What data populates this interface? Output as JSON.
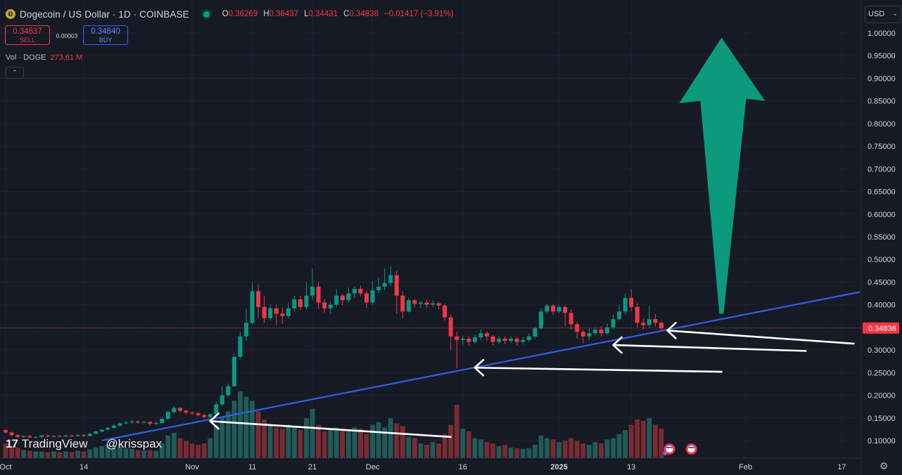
{
  "header": {
    "symbol": "Dogecoin / US Dollar · 1D · COINBASE",
    "coin_glyph": "Ð",
    "ohlc": [
      {
        "key": "O",
        "value": "0.36269"
      },
      {
        "key": "H",
        "value": "0.36437"
      },
      {
        "key": "L",
        "value": "0.34431"
      },
      {
        "key": "C",
        "value": "0.34838"
      }
    ],
    "change": "−0.01417 (−3.91%)"
  },
  "trade": {
    "sell_price": "0.34837",
    "sell_label": "SELL",
    "spread": "0.00003",
    "buy_price": "0.34840",
    "buy_label": "BUY"
  },
  "volume": {
    "label": "Vol · DOGE",
    "value": "273.61 M"
  },
  "currency": "USD",
  "watermark": {
    "logo": "17",
    "brand": "TradingView",
    "user": "@krisspax"
  },
  "colors": {
    "up": "#089981",
    "down": "#f23645",
    "vol_up": "#1f5b57",
    "vol_down": "#7a2a33",
    "trendline": "#2f5fe8",
    "big_arrow": "#0b9a7c",
    "arrows": "#ffffff",
    "background": "#161a25"
  },
  "chart_data": {
    "type": "candlestick",
    "ylim": [
      0.058,
      1.027
    ],
    "y_ticks": [
      "1.00000",
      "0.95000",
      "0.90000",
      "0.85000",
      "0.80000",
      "0.75000",
      "0.70000",
      "0.65000",
      "0.60000",
      "0.55000",
      "0.50000",
      "0.45000",
      "0.40000",
      "0.35000",
      "0.30000",
      "0.25000",
      "0.20000",
      "0.15000",
      "0.10000"
    ],
    "x_ticks": [
      {
        "label": "Oct",
        "day": 0
      },
      {
        "label": "14",
        "day": 13
      },
      {
        "label": "Nov",
        "day": 31
      },
      {
        "label": "11",
        "day": 41
      },
      {
        "label": "21",
        "day": 51
      },
      {
        "label": "Dec",
        "day": 61
      },
      {
        "label": "16",
        "day": 76
      },
      {
        "label": "2025",
        "day": 92
      },
      {
        "label": "13",
        "day": 104
      },
      {
        "label": "Feb",
        "day": 123
      },
      {
        "label": "17",
        "day": 139
      }
    ],
    "last_price": "0.34838",
    "candles": [
      [
        0.123,
        0.118,
        0.126,
        0.116
      ],
      [
        0.118,
        0.112,
        0.12,
        0.11
      ],
      [
        0.112,
        0.108,
        0.114,
        0.106
      ],
      [
        0.108,
        0.11,
        0.112,
        0.106
      ],
      [
        0.11,
        0.107,
        0.112,
        0.105
      ],
      [
        0.107,
        0.108,
        0.11,
        0.105
      ],
      [
        0.108,
        0.111,
        0.113,
        0.106
      ],
      [
        0.111,
        0.109,
        0.113,
        0.107
      ],
      [
        0.109,
        0.11,
        0.112,
        0.107
      ],
      [
        0.11,
        0.109,
        0.112,
        0.107
      ],
      [
        0.109,
        0.111,
        0.113,
        0.108
      ],
      [
        0.111,
        0.11,
        0.113,
        0.108
      ],
      [
        0.11,
        0.112,
        0.114,
        0.109
      ],
      [
        0.112,
        0.11,
        0.114,
        0.108
      ],
      [
        0.11,
        0.115,
        0.117,
        0.109
      ],
      [
        0.115,
        0.12,
        0.122,
        0.114
      ],
      [
        0.12,
        0.124,
        0.126,
        0.118
      ],
      [
        0.124,
        0.128,
        0.131,
        0.122
      ],
      [
        0.128,
        0.133,
        0.136,
        0.126
      ],
      [
        0.133,
        0.138,
        0.141,
        0.131
      ],
      [
        0.138,
        0.14,
        0.144,
        0.136
      ],
      [
        0.14,
        0.142,
        0.146,
        0.138
      ],
      [
        0.142,
        0.14,
        0.145,
        0.137
      ],
      [
        0.14,
        0.141,
        0.144,
        0.138
      ],
      [
        0.141,
        0.137,
        0.143,
        0.134
      ],
      [
        0.137,
        0.139,
        0.142,
        0.135
      ],
      [
        0.139,
        0.148,
        0.152,
        0.137
      ],
      [
        0.148,
        0.163,
        0.167,
        0.146
      ],
      [
        0.163,
        0.172,
        0.176,
        0.16
      ],
      [
        0.172,
        0.166,
        0.174,
        0.162
      ],
      [
        0.166,
        0.162,
        0.168,
        0.158
      ],
      [
        0.162,
        0.16,
        0.165,
        0.156
      ],
      [
        0.16,
        0.156,
        0.163,
        0.153
      ],
      [
        0.156,
        0.152,
        0.159,
        0.149
      ],
      [
        0.152,
        0.158,
        0.16,
        0.148
      ],
      [
        0.158,
        0.18,
        0.186,
        0.156
      ],
      [
        0.18,
        0.2,
        0.22,
        0.176
      ],
      [
        0.2,
        0.22,
        0.226,
        0.196
      ],
      [
        0.22,
        0.285,
        0.292,
        0.218
      ],
      [
        0.285,
        0.33,
        0.34,
        0.28
      ],
      [
        0.33,
        0.36,
        0.39,
        0.32
      ],
      [
        0.36,
        0.43,
        0.45,
        0.355
      ],
      [
        0.43,
        0.395,
        0.445,
        0.37
      ],
      [
        0.395,
        0.37,
        0.42,
        0.36
      ],
      [
        0.37,
        0.392,
        0.402,
        0.365
      ],
      [
        0.392,
        0.38,
        0.4,
        0.355
      ],
      [
        0.38,
        0.375,
        0.395,
        0.358
      ],
      [
        0.375,
        0.392,
        0.405,
        0.37
      ],
      [
        0.392,
        0.412,
        0.42,
        0.385
      ],
      [
        0.412,
        0.395,
        0.42,
        0.388
      ],
      [
        0.395,
        0.42,
        0.45,
        0.39
      ],
      [
        0.42,
        0.44,
        0.48,
        0.41
      ],
      [
        0.44,
        0.405,
        0.45,
        0.39
      ],
      [
        0.405,
        0.392,
        0.412,
        0.382
      ],
      [
        0.392,
        0.4,
        0.407,
        0.38
      ],
      [
        0.4,
        0.42,
        0.435,
        0.395
      ],
      [
        0.42,
        0.41,
        0.425,
        0.398
      ],
      [
        0.41,
        0.425,
        0.438,
        0.405
      ],
      [
        0.425,
        0.435,
        0.44,
        0.415
      ],
      [
        0.435,
        0.425,
        0.443,
        0.418
      ],
      [
        0.425,
        0.405,
        0.43,
        0.393
      ],
      [
        0.405,
        0.432,
        0.452,
        0.4
      ],
      [
        0.432,
        0.44,
        0.46,
        0.425
      ],
      [
        0.44,
        0.448,
        0.48,
        0.432
      ],
      [
        0.448,
        0.465,
        0.485,
        0.44
      ],
      [
        0.465,
        0.42,
        0.475,
        0.38
      ],
      [
        0.42,
        0.385,
        0.43,
        0.37
      ],
      [
        0.385,
        0.41,
        0.415,
        0.383
      ],
      [
        0.41,
        0.402,
        0.413,
        0.395
      ],
      [
        0.402,
        0.405,
        0.408,
        0.393
      ],
      [
        0.405,
        0.4,
        0.411,
        0.393
      ],
      [
        0.4,
        0.403,
        0.409,
        0.395
      ],
      [
        0.403,
        0.398,
        0.407,
        0.39
      ],
      [
        0.398,
        0.372,
        0.402,
        0.365
      ],
      [
        0.372,
        0.33,
        0.378,
        0.3
      ],
      [
        0.33,
        0.322,
        0.34,
        0.26
      ],
      [
        0.322,
        0.325,
        0.332,
        0.312
      ],
      [
        0.325,
        0.318,
        0.33,
        0.31
      ],
      [
        0.318,
        0.328,
        0.334,
        0.314
      ],
      [
        0.328,
        0.337,
        0.345,
        0.322
      ],
      [
        0.337,
        0.33,
        0.341,
        0.32
      ],
      [
        0.33,
        0.318,
        0.334,
        0.311
      ],
      [
        0.318,
        0.325,
        0.33,
        0.313
      ],
      [
        0.325,
        0.32,
        0.33,
        0.313
      ],
      [
        0.32,
        0.325,
        0.33,
        0.315
      ],
      [
        0.325,
        0.318,
        0.329,
        0.31
      ],
      [
        0.318,
        0.322,
        0.328,
        0.312
      ],
      [
        0.322,
        0.33,
        0.336,
        0.318
      ],
      [
        0.33,
        0.348,
        0.352,
        0.325
      ],
      [
        0.348,
        0.385,
        0.392,
        0.345
      ],
      [
        0.385,
        0.398,
        0.402,
        0.38
      ],
      [
        0.398,
        0.385,
        0.402,
        0.378
      ],
      [
        0.385,
        0.395,
        0.4,
        0.38
      ],
      [
        0.395,
        0.382,
        0.399,
        0.352
      ],
      [
        0.382,
        0.357,
        0.39,
        0.345
      ],
      [
        0.357,
        0.34,
        0.362,
        0.325
      ],
      [
        0.34,
        0.33,
        0.345,
        0.315
      ],
      [
        0.33,
        0.337,
        0.348,
        0.322
      ],
      [
        0.337,
        0.345,
        0.35,
        0.332
      ],
      [
        0.345,
        0.337,
        0.352,
        0.33
      ],
      [
        0.337,
        0.35,
        0.358,
        0.333
      ],
      [
        0.35,
        0.368,
        0.378,
        0.345
      ],
      [
        0.368,
        0.385,
        0.4,
        0.365
      ],
      [
        0.385,
        0.415,
        0.425,
        0.378
      ],
      [
        0.415,
        0.395,
        0.435,
        0.385
      ],
      [
        0.395,
        0.36,
        0.405,
        0.35
      ],
      [
        0.36,
        0.355,
        0.37,
        0.345
      ],
      [
        0.355,
        0.368,
        0.398,
        0.35
      ],
      [
        0.368,
        0.36,
        0.38,
        0.352
      ],
      [
        0.36,
        0.348,
        0.364,
        0.344
      ]
    ],
    "volumes": [
      0.22,
      0.18,
      0.16,
      0.12,
      0.11,
      0.1,
      0.1,
      0.09,
      0.1,
      0.09,
      0.1,
      0.09,
      0.11,
      0.1,
      0.13,
      0.16,
      0.18,
      0.2,
      0.19,
      0.17,
      0.15,
      0.14,
      0.12,
      0.11,
      0.12,
      0.11,
      0.22,
      0.34,
      0.38,
      0.3,
      0.26,
      0.22,
      0.2,
      0.22,
      0.3,
      0.5,
      0.62,
      0.7,
      0.86,
      1.0,
      0.92,
      0.86,
      0.7,
      0.58,
      0.5,
      0.46,
      0.44,
      0.5,
      0.46,
      0.42,
      0.6,
      0.74,
      0.5,
      0.4,
      0.44,
      0.46,
      0.42,
      0.4,
      0.46,
      0.44,
      0.36,
      0.5,
      0.54,
      0.46,
      0.6,
      0.52,
      0.48,
      0.32,
      0.3,
      0.22,
      0.2,
      0.24,
      0.22,
      0.36,
      0.5,
      0.8,
      0.44,
      0.4,
      0.3,
      0.28,
      0.24,
      0.22,
      0.18,
      0.2,
      0.16,
      0.15,
      0.14,
      0.15,
      0.2,
      0.34,
      0.3,
      0.28,
      0.24,
      0.26,
      0.3,
      0.26,
      0.22,
      0.2,
      0.24,
      0.22,
      0.28,
      0.3,
      0.36,
      0.42,
      0.5,
      0.58,
      0.56,
      0.6,
      0.5,
      0.44
    ]
  }
}
